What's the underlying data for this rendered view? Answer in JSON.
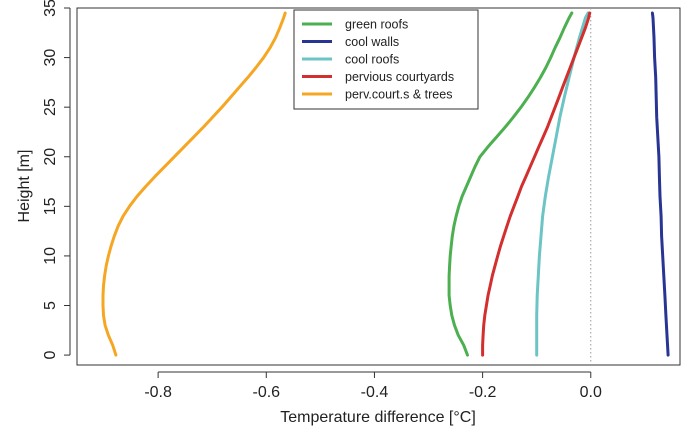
{
  "chart_data": {
    "type": "line",
    "title": "",
    "xlabel": "Temperature difference [°C]",
    "ylabel": "Height [m]",
    "xlim": [
      -0.95,
      0.165
    ],
    "ylim": [
      -1,
      35
    ],
    "x_ticks": [
      -0.8,
      -0.6,
      -0.4,
      -0.2,
      0.0
    ],
    "x_tick_labels": [
      "-0.8",
      "-0.6",
      "-0.4",
      "-0.2",
      "0.0"
    ],
    "y_ticks": [
      0,
      5,
      10,
      15,
      20,
      25,
      30,
      35
    ],
    "y_tick_labels": [
      "0",
      "5",
      "10",
      "15",
      "20",
      "25",
      "30",
      "35"
    ],
    "reference_line": {
      "x": 0.0,
      "style": "dotted"
    },
    "legend_position": "top-center",
    "series": [
      {
        "name": "green roofs",
        "color": "#4caf50",
        "points": [
          [
            -0.228,
            0
          ],
          [
            -0.235,
            1
          ],
          [
            -0.245,
            2
          ],
          [
            -0.252,
            3
          ],
          [
            -0.257,
            4
          ],
          [
            -0.26,
            5
          ],
          [
            -0.262,
            6
          ],
          [
            -0.262,
            7
          ],
          [
            -0.262,
            8
          ],
          [
            -0.261,
            9
          ],
          [
            -0.26,
            10
          ],
          [
            -0.258,
            11
          ],
          [
            -0.256,
            12
          ],
          [
            -0.253,
            13
          ],
          [
            -0.249,
            14
          ],
          [
            -0.244,
            15
          ],
          [
            -0.238,
            16
          ],
          [
            -0.23,
            17
          ],
          [
            -0.222,
            18
          ],
          [
            -0.214,
            19
          ],
          [
            -0.205,
            20
          ],
          [
            -0.19,
            21
          ],
          [
            -0.174,
            22
          ],
          [
            -0.158,
            23
          ],
          [
            -0.143,
            24
          ],
          [
            -0.129,
            25
          ],
          [
            -0.116,
            26
          ],
          [
            -0.104,
            27
          ],
          [
            -0.093,
            28
          ],
          [
            -0.083,
            29
          ],
          [
            -0.074,
            30
          ],
          [
            -0.066,
            31
          ],
          [
            -0.057,
            32
          ],
          [
            -0.049,
            33
          ],
          [
            -0.04,
            34
          ],
          [
            -0.035,
            34.5
          ]
        ]
      },
      {
        "name": "cool walls",
        "color": "#283593",
        "points": [
          [
            0.143,
            0
          ],
          [
            0.141,
            2
          ],
          [
            0.139,
            4
          ],
          [
            0.137,
            6
          ],
          [
            0.135,
            8
          ],
          [
            0.133,
            10
          ],
          [
            0.131,
            12
          ],
          [
            0.13,
            14
          ],
          [
            0.128,
            16
          ],
          [
            0.127,
            18
          ],
          [
            0.126,
            20
          ],
          [
            0.124,
            22
          ],
          [
            0.122,
            24
          ],
          [
            0.121,
            26
          ],
          [
            0.12,
            28
          ],
          [
            0.118,
            30
          ],
          [
            0.117,
            32
          ],
          [
            0.115,
            34
          ],
          [
            0.114,
            34.5
          ]
        ]
      },
      {
        "name": "cool roofs",
        "color": "#6cc4c4",
        "points": [
          [
            -0.1,
            0
          ],
          [
            -0.1,
            2
          ],
          [
            -0.1,
            4
          ],
          [
            -0.099,
            6
          ],
          [
            -0.097,
            8
          ],
          [
            -0.095,
            10
          ],
          [
            -0.092,
            12
          ],
          [
            -0.089,
            14
          ],
          [
            -0.084,
            16
          ],
          [
            -0.078,
            18
          ],
          [
            -0.071,
            20
          ],
          [
            -0.064,
            22
          ],
          [
            -0.057,
            24
          ],
          [
            -0.049,
            26
          ],
          [
            -0.04,
            28
          ],
          [
            -0.031,
            30
          ],
          [
            -0.021,
            32
          ],
          [
            -0.01,
            34
          ],
          [
            -0.005,
            34.5
          ]
        ]
      },
      {
        "name": "pervious courtyards",
        "color": "#d32f2f",
        "points": [
          [
            -0.2,
            0
          ],
          [
            -0.2,
            1
          ],
          [
            -0.199,
            2
          ],
          [
            -0.198,
            3
          ],
          [
            -0.196,
            4
          ],
          [
            -0.193,
            5
          ],
          [
            -0.19,
            6
          ],
          [
            -0.186,
            7
          ],
          [
            -0.182,
            8
          ],
          [
            -0.177,
            9
          ],
          [
            -0.172,
            10
          ],
          [
            -0.167,
            11
          ],
          [
            -0.161,
            12
          ],
          [
            -0.155,
            13
          ],
          [
            -0.149,
            14
          ],
          [
            -0.142,
            15
          ],
          [
            -0.135,
            16
          ],
          [
            -0.128,
            17
          ],
          [
            -0.12,
            18
          ],
          [
            -0.112,
            19
          ],
          [
            -0.104,
            20
          ],
          [
            -0.096,
            21
          ],
          [
            -0.088,
            22
          ],
          [
            -0.08,
            23
          ],
          [
            -0.073,
            24
          ],
          [
            -0.066,
            25
          ],
          [
            -0.059,
            26
          ],
          [
            -0.052,
            27
          ],
          [
            -0.045,
            28
          ],
          [
            -0.038,
            29
          ],
          [
            -0.031,
            30
          ],
          [
            -0.024,
            31
          ],
          [
            -0.017,
            32
          ],
          [
            -0.01,
            33
          ],
          [
            -0.004,
            34
          ],
          [
            -0.002,
            34.5
          ]
        ]
      },
      {
        "name": "perv.court.s & trees",
        "color": "#f5a623",
        "points": [
          [
            -0.878,
            0
          ],
          [
            -0.884,
            1
          ],
          [
            -0.892,
            2
          ],
          [
            -0.898,
            3
          ],
          [
            -0.901,
            4
          ],
          [
            -0.902,
            5
          ],
          [
            -0.902,
            6
          ],
          [
            -0.901,
            7
          ],
          [
            -0.899,
            8
          ],
          [
            -0.896,
            9
          ],
          [
            -0.892,
            10
          ],
          [
            -0.887,
            11
          ],
          [
            -0.881,
            12
          ],
          [
            -0.874,
            13
          ],
          [
            -0.865,
            14
          ],
          [
            -0.853,
            15
          ],
          [
            -0.839,
            16
          ],
          [
            -0.823,
            17
          ],
          [
            -0.806,
            18
          ],
          [
            -0.788,
            19
          ],
          [
            -0.77,
            20
          ],
          [
            -0.752,
            21
          ],
          [
            -0.734,
            22
          ],
          [
            -0.716,
            23
          ],
          [
            -0.699,
            24
          ],
          [
            -0.682,
            25
          ],
          [
            -0.666,
            26
          ],
          [
            -0.65,
            27
          ],
          [
            -0.634,
            28
          ],
          [
            -0.619,
            29
          ],
          [
            -0.605,
            30
          ],
          [
            -0.593,
            31
          ],
          [
            -0.583,
            32
          ],
          [
            -0.575,
            33
          ],
          [
            -0.568,
            34
          ],
          [
            -0.565,
            34.5
          ]
        ]
      }
    ]
  }
}
